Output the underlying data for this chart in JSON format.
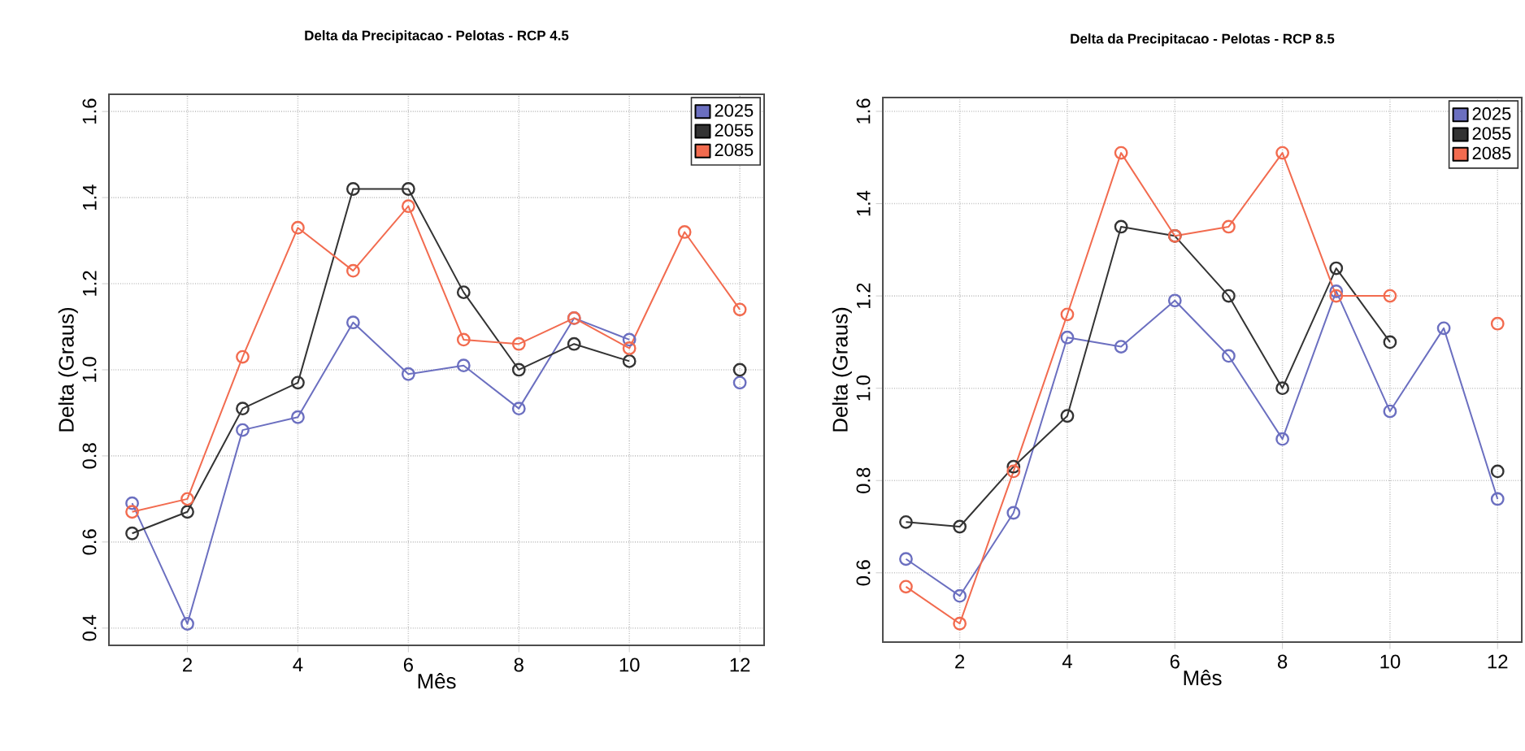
{
  "chart_data": [
    {
      "type": "line",
      "title": "Delta da Precipitacao - Pelotas - RCP  4.5",
      "xlabel": "Mês",
      "ylabel": "Delta (Graus)",
      "x": [
        1,
        2,
        3,
        4,
        5,
        6,
        7,
        8,
        9,
        10,
        11,
        12
      ],
      "series": [
        {
          "name": "2025",
          "color": "#6b6fc0",
          "values": [
            0.69,
            0.41,
            0.86,
            0.89,
            1.11,
            0.99,
            1.01,
            0.91,
            1.12,
            1.07,
            null,
            0.97
          ]
        },
        {
          "name": "2055",
          "color": "#333333",
          "values": [
            0.62,
            0.67,
            0.91,
            0.97,
            1.42,
            1.42,
            1.18,
            1.0,
            1.06,
            1.02,
            null,
            1.0
          ]
        },
        {
          "name": "2085",
          "color": "#f26b4f",
          "values": [
            0.67,
            0.7,
            1.03,
            1.33,
            1.23,
            1.38,
            1.07,
            1.06,
            1.12,
            1.05,
            1.32,
            1.14
          ]
        }
      ],
      "xlim": [
        0.58,
        12.44
      ],
      "ylim": [
        0.36,
        1.64
      ],
      "xticks": [
        2,
        4,
        6,
        8,
        10,
        12
      ],
      "yticks": [
        0.4,
        0.6,
        0.8,
        {
          "value": 1,
          "label": "1.0"
        },
        1.2,
        1.4,
        1.6
      ],
      "grid": true,
      "legend": "top right",
      "marker": "circle",
      "line_style": "solid"
    },
    {
      "type": "line",
      "title": "Delta da Precipitacao - Pelotas - RCP  8.5",
      "xlabel": "Mês",
      "ylabel": "Delta (Graus)",
      "x": [
        1,
        2,
        3,
        4,
        5,
        6,
        7,
        8,
        9,
        10,
        11,
        12
      ],
      "series": [
        {
          "name": "2025",
          "color": "#6b6fc0",
          "values": [
            0.63,
            0.55,
            0.73,
            1.11,
            1.09,
            1.19,
            1.07,
            0.89,
            1.21,
            0.95,
            1.13,
            0.76
          ]
        },
        {
          "name": "2055",
          "color": "#333333",
          "values": [
            0.71,
            0.7,
            0.83,
            0.94,
            1.35,
            1.33,
            1.2,
            1.0,
            1.26,
            1.1,
            null,
            0.82
          ]
        },
        {
          "name": "2085",
          "color": "#f26b4f",
          "values": [
            0.57,
            0.49,
            0.82,
            1.16,
            1.51,
            1.33,
            1.35,
            1.51,
            1.2,
            1.2,
            null,
            1.14
          ]
        }
      ],
      "xlim": [
        0.57,
        12.45
      ],
      "ylim": [
        0.45,
        1.63
      ],
      "xticks": [
        2,
        4,
        6,
        8,
        10,
        12
      ],
      "yticks": [
        0.6,
        0.8,
        {
          "value": 1,
          "label": "1.0"
        },
        1.2,
        1.4,
        1.6
      ],
      "grid": true,
      "legend": "top right",
      "marker": "circle",
      "line_style": "solid"
    }
  ]
}
